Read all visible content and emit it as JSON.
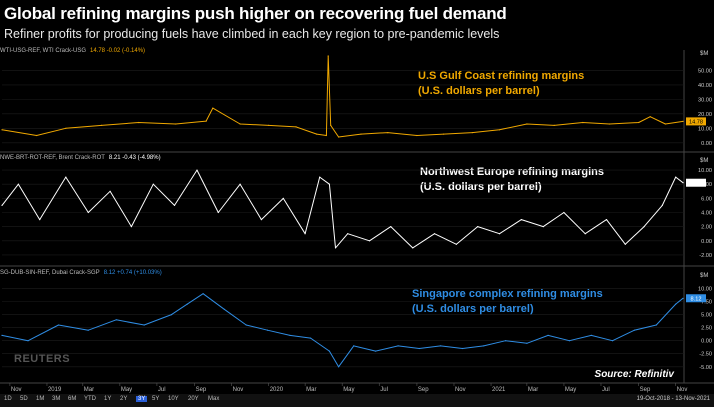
{
  "title": "Global refining margins push higher on recovering fuel demand",
  "subtitle": "Refiner profits for producing fuels have climbed in each key region to pre-pandemic levels",
  "source": "Source: Refinitiv",
  "watermark": "REUTERS",
  "date_range": "19-Oct-2018 - 13-Nov-2021",
  "timeframes": [
    "1D",
    "5D",
    "1M",
    "3M",
    "6M",
    "YTD",
    "1Y",
    "2Y",
    "3Y",
    "5Y",
    "10Y",
    "20Y",
    "Max"
  ],
  "active_timeframe": "3Y",
  "x_tick_labels": [
    "Nov",
    "2019",
    "Mar",
    "May",
    "Jul",
    "Sep",
    "Nov",
    "2020",
    "Mar",
    "May",
    "Jul",
    "Sep",
    "Nov",
    "2021",
    "Mar",
    "May",
    "Jul",
    "Sep",
    "Nov"
  ],
  "chart_data": [
    {
      "type": "line",
      "header": "WTI-USG-REF, WTI Crack-USG",
      "header_value": "14.78 -0.02 (-0.14%)",
      "annotation_line1": "U.S Gulf Coast refining margins",
      "annotation_line2": "(U.S. dollars per barrel)",
      "color": "#f0a800",
      "ylim": [
        -5,
        60
      ],
      "yticks": [
        0,
        10,
        20,
        30,
        40,
        50
      ],
      "ytick_labels": [
        "0.00",
        "10.00",
        "20.00",
        "30.00",
        "40.00",
        "50.00"
      ],
      "unit_label": "$M",
      "last_value_label": "14.78",
      "x": [
        "2018-10-19",
        "2018-12-15",
        "2019-02-01",
        "2019-04-01",
        "2019-06-01",
        "2019-08-01",
        "2019-09-20",
        "2019-10-01",
        "2019-11-15",
        "2020-01-01",
        "2020-02-15",
        "2020-03-20",
        "2020-04-05",
        "2020-04-08",
        "2020-04-12",
        "2020-04-25",
        "2020-06-01",
        "2020-07-15",
        "2020-09-01",
        "2020-10-15",
        "2020-12-01",
        "2021-01-15",
        "2021-03-01",
        "2021-04-15",
        "2021-06-01",
        "2021-07-15",
        "2021-09-01",
        "2021-09-20",
        "2021-10-15",
        "2021-11-13"
      ],
      "y": [
        9,
        5,
        10,
        12,
        14,
        13,
        15,
        24,
        13,
        12,
        11,
        6,
        5,
        60,
        12,
        4,
        6,
        7,
        5,
        6,
        7,
        9,
        13,
        12,
        14,
        13,
        14,
        18,
        13,
        14.78
      ]
    },
    {
      "type": "line",
      "header": "NWE-BRT-ROT-REF, Brent Crack-ROT",
      "header_value": "8.21 -0.43 (-4.98%)",
      "annotation_line1": "Northwest Europe refining margins",
      "annotation_line2": "(U.S. dollars per barrel)",
      "color": "#ffffff",
      "ylim": [
        -3,
        11
      ],
      "yticks": [
        -2,
        0,
        2,
        4,
        6,
        8,
        10
      ],
      "ytick_labels": [
        "-2.00",
        "0.00",
        "2.00",
        "4.00",
        "6.00",
        "8.00",
        "10.00"
      ],
      "unit_label": "$M",
      "last_value_label": "8.21",
      "x": [
        "2018-10-19",
        "2018-11-15",
        "2018-12-20",
        "2019-02-01",
        "2019-03-10",
        "2019-04-15",
        "2019-05-20",
        "2019-06-25",
        "2019-07-30",
        "2019-09-05",
        "2019-10-10",
        "2019-11-15",
        "2019-12-20",
        "2020-01-25",
        "2020-03-01",
        "2020-03-25",
        "2020-04-10",
        "2020-04-20",
        "2020-05-10",
        "2020-06-15",
        "2020-07-20",
        "2020-08-25",
        "2020-09-30",
        "2020-11-05",
        "2020-12-10",
        "2021-01-15",
        "2021-02-20",
        "2021-03-28",
        "2021-05-01",
        "2021-06-05",
        "2021-07-10",
        "2021-08-10",
        "2021-09-10",
        "2021-10-10",
        "2021-11-01",
        "2021-11-13"
      ],
      "y": [
        5,
        8,
        3,
        9,
        4,
        7,
        2,
        8,
        5,
        10,
        4,
        8,
        3,
        6,
        1,
        9,
        8,
        -1,
        1,
        0,
        2,
        -1,
        1,
        -0.5,
        2,
        1,
        3,
        2,
        4,
        1,
        3,
        -0.5,
        2,
        5,
        9,
        8.21
      ]
    },
    {
      "type": "line",
      "header": "SG-DUB-SIN-REF, Dubai Crack-SGP",
      "header_value": "8.12 +0.74 (+10.03%)",
      "annotation_line1": "Singapore complex refining margins",
      "annotation_line2": "(U.S. dollars per barrel)",
      "color": "#2f8de4",
      "ylim": [
        -6,
        12
      ],
      "yticks": [
        -5,
        -2.5,
        0,
        2.5,
        5,
        7.5,
        10
      ],
      "ytick_labels": [
        "-5.00",
        "-2.50",
        "0.00",
        "2.50",
        "5.00",
        "7.50",
        "10.00"
      ],
      "unit_label": "$M",
      "last_value_label": "8.12",
      "x": [
        "2018-10-19",
        "2018-12-01",
        "2019-01-20",
        "2019-03-10",
        "2019-04-25",
        "2019-06-10",
        "2019-07-25",
        "2019-08-20",
        "2019-09-15",
        "2019-10-20",
        "2019-11-25",
        "2019-12-30",
        "2020-02-05",
        "2020-03-10",
        "2020-04-10",
        "2020-04-25",
        "2020-05-20",
        "2020-06-25",
        "2020-08-01",
        "2020-09-05",
        "2020-10-10",
        "2020-11-15",
        "2020-12-20",
        "2021-01-25",
        "2021-03-01",
        "2021-04-05",
        "2021-05-10",
        "2021-06-15",
        "2021-07-20",
        "2021-08-25",
        "2021-09-30",
        "2021-11-01",
        "2021-11-13"
      ],
      "y": [
        1,
        0,
        3,
        2,
        4,
        3,
        5,
        7,
        9,
        6,
        3,
        2,
        1,
        0.5,
        -2,
        -5,
        -1,
        -2,
        -1,
        -1.5,
        -1,
        -1.5,
        -1,
        0,
        -0.5,
        1,
        0,
        1,
        0,
        2,
        3,
        7,
        8.12
      ]
    }
  ]
}
